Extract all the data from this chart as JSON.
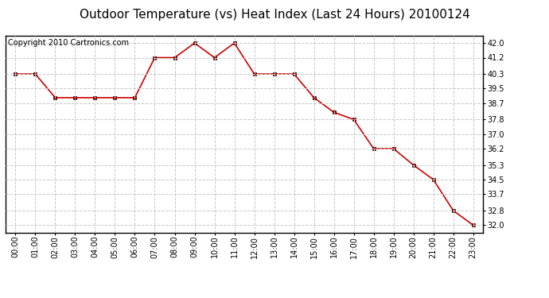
{
  "title": "Outdoor Temperature (vs) Heat Index (Last 24 Hours) 20100124",
  "copyright": "Copyright 2010 Cartronics.com",
  "hours": [
    "00:00",
    "01:00",
    "02:00",
    "03:00",
    "04:00",
    "05:00",
    "06:00",
    "07:00",
    "08:00",
    "09:00",
    "10:00",
    "11:00",
    "12:00",
    "13:00",
    "14:00",
    "15:00",
    "16:00",
    "17:00",
    "18:00",
    "19:00",
    "20:00",
    "21:00",
    "22:00",
    "23:00"
  ],
  "values": [
    40.3,
    40.3,
    39.0,
    39.0,
    39.0,
    39.0,
    39.0,
    41.2,
    41.2,
    42.0,
    41.2,
    42.0,
    40.3,
    40.3,
    40.3,
    39.0,
    38.2,
    37.8,
    36.2,
    36.2,
    35.3,
    34.5,
    32.8,
    32.0
  ],
  "line_color": "#cc0000",
  "marker": "s",
  "marker_size": 3,
  "background_color": "#ffffff",
  "grid_color": "#c8c8c8",
  "ylim_min": 31.6,
  "ylim_max": 42.4,
  "yticks": [
    32.0,
    32.8,
    33.7,
    34.5,
    35.3,
    36.2,
    37.0,
    37.8,
    38.7,
    39.5,
    40.3,
    41.2,
    42.0
  ],
  "title_fontsize": 11,
  "copyright_fontsize": 7,
  "tick_fontsize": 7
}
